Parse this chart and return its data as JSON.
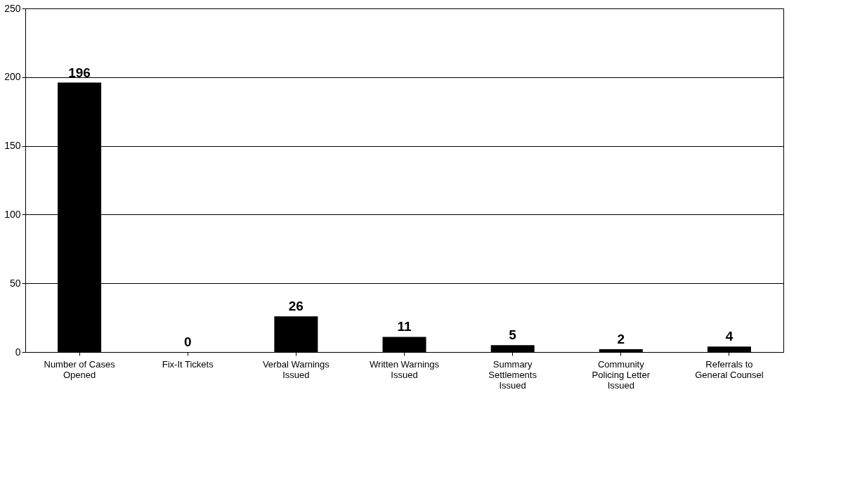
{
  "chart_data": {
    "type": "bar",
    "categories": [
      "Number of Cases Opened",
      "Fix-It Tickets",
      "Verbal Warnings Issued",
      "Written Warnings Issued",
      "Summary Settlements Issued",
      "Community Policing Letter Issued",
      "Referrals to General Counsel"
    ],
    "values": [
      196,
      0,
      26,
      11,
      5,
      2,
      4
    ],
    "color": "#000000",
    "ylim": [
      0,
      250
    ],
    "yticks": [
      0,
      50,
      100,
      150,
      200,
      250
    ],
    "grid": "y",
    "data_labels": true
  }
}
